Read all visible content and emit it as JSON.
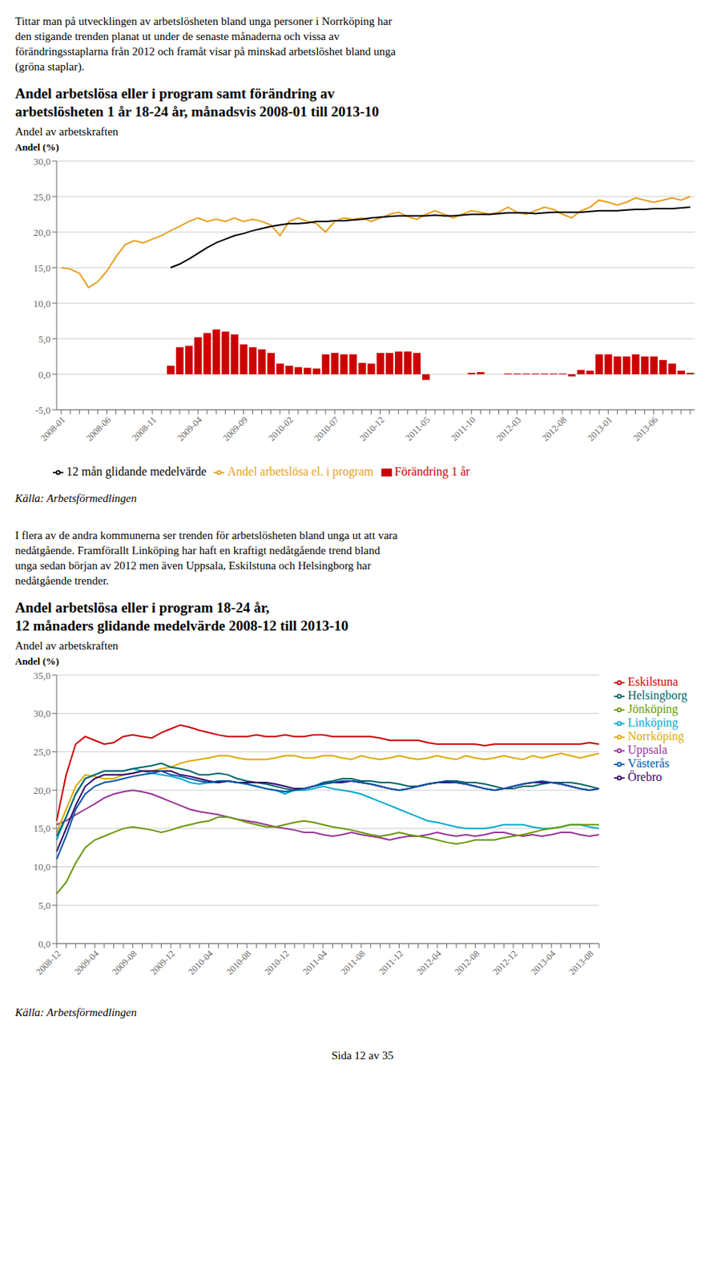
{
  "chart_data": [
    {
      "type": "bar",
      "annotations": [
        "Tittar man på utvecklingen av arbetslösheten bland unga personer i Norrköping har",
        "den stigande trenden planat ut under de senaste månaderna och vissa av",
        "förändringsstaplarna från 2012 och framåt visar på minskad arbetslöshet bland unga",
        "(gröna staplar)."
      ],
      "title": "Andel arbetslösa eller i program samt förändring av\narbetslösheten 1 år 18-24 år, månadsvis 2008-01 till 2013-10",
      "subtitle": "Andel av arbetskraften",
      "y_label": "Andel (%)",
      "categories": [
        "2008-01",
        null,
        null,
        null,
        null,
        "2008-06",
        null,
        null,
        null,
        null,
        "2008-11",
        null,
        null,
        null,
        null,
        "2009-04",
        null,
        null,
        null,
        null,
        "2009-09",
        null,
        null,
        null,
        null,
        "2010-02",
        null,
        null,
        null,
        null,
        "2010-07",
        null,
        null,
        null,
        null,
        "2010-12",
        null,
        null,
        null,
        null,
        "2011-05",
        null,
        null,
        null,
        null,
        "2011-10",
        null,
        null,
        null,
        null,
        "2012-03",
        null,
        null,
        null,
        null,
        "2012-08",
        null,
        null,
        null,
        null,
        "2013-01",
        null,
        null,
        null,
        null,
        "2013-06",
        null,
        null,
        null,
        null
      ],
      "series": [
        {
          "name": "Förändring 1 år",
          "type": "bar",
          "color": "#cc0000",
          "values": [
            0,
            0,
            0,
            0,
            0,
            0,
            0,
            0,
            0,
            0,
            0,
            0,
            1.2,
            3.8,
            4.0,
            5.2,
            5.8,
            6.3,
            6.0,
            5.6,
            4.2,
            3.8,
            3.5,
            3.0,
            1.5,
            1.2,
            1.0,
            0.9,
            0.8,
            2.8,
            3.0,
            2.8,
            2.8,
            1.6,
            1.5,
            3.0,
            3.0,
            3.2,
            3.2,
            3.0,
            -0.8,
            0,
            0,
            0,
            0,
            0.2,
            0.3,
            0,
            0,
            0.1,
            0.1,
            0.1,
            0.1,
            0.1,
            0.1,
            0.1,
            -0.3,
            0.6,
            0.5,
            2.8,
            2.8,
            2.5,
            2.5,
            2.8,
            2.5,
            2.5,
            2.0,
            1.5,
            0.5,
            0.2
          ]
        },
        {
          "name": "Andel arbetslösa el. i program",
          "type": "line",
          "color": "#e8a020",
          "values": [
            15.0,
            14.8,
            14.2,
            12.2,
            13.0,
            14.5,
            16.5,
            18.2,
            18.8,
            18.5,
            19.0,
            19.5,
            20.2,
            20.8,
            21.5,
            22.0,
            21.5,
            21.8,
            21.5,
            22.0,
            21.5,
            21.8,
            21.5,
            21.0,
            19.5,
            21.5,
            22.0,
            21.5,
            21.2,
            20.0,
            21.5,
            22.0,
            21.8,
            22.0,
            21.5,
            22.0,
            22.5,
            22.8,
            22.2,
            21.8,
            22.5,
            23.0,
            22.5,
            22.0,
            22.5,
            23.0,
            22.8,
            22.5,
            22.8,
            23.5,
            22.8,
            22.5,
            23.0,
            23.5,
            23.2,
            22.5,
            22.0,
            23.0,
            23.5,
            24.5,
            24.2,
            23.8,
            24.2,
            24.8,
            24.5,
            24.2,
            24.5,
            24.8,
            24.5,
            25.0
          ]
        },
        {
          "name": "12 mån glidande medelvärde",
          "type": "line",
          "color": "#000000",
          "values": [
            null,
            null,
            null,
            null,
            null,
            null,
            null,
            null,
            null,
            null,
            null,
            null,
            15.0,
            15.5,
            16.2,
            17.0,
            17.8,
            18.5,
            19.0,
            19.5,
            19.8,
            20.2,
            20.5,
            20.8,
            21.0,
            21.2,
            21.2,
            21.3,
            21.5,
            21.5,
            21.6,
            21.6,
            21.7,
            21.8,
            22.0,
            22.1,
            22.2,
            22.3,
            22.3,
            22.3,
            22.3,
            22.4,
            22.3,
            22.3,
            22.4,
            22.5,
            22.5,
            22.5,
            22.6,
            22.7,
            22.7,
            22.7,
            22.6,
            22.7,
            22.8,
            22.8,
            22.8,
            22.8,
            22.9,
            23.0,
            23.0,
            23.0,
            23.1,
            23.2,
            23.2,
            23.3,
            23.3,
            23.3,
            23.4,
            23.5
          ]
        }
      ],
      "ylim": [
        -5.0,
        30.0
      ],
      "yticks": [
        {
          "value": -5.0,
          "label": "-5,0"
        },
        {
          "value": 0.0,
          "label": "0,0"
        },
        {
          "value": 5.0,
          "label": "5,0"
        },
        {
          "value": 10.0,
          "label": "10,0"
        },
        {
          "value": 15.0,
          "label": "15,0"
        },
        {
          "value": 20.0,
          "label": "20,0"
        },
        {
          "value": 25.0,
          "label": "25,0"
        },
        {
          "value": 30.0,
          "label": "30,0"
        }
      ],
      "grid": true,
      "legend": "bottom",
      "source": "Källa: Arbetsförmedlingen"
    },
    {
      "type": "line",
      "annotations": [
        "I flera av de andra kommunerna ser trenden för arbetslösheten bland unga ut att vara",
        "nedåtgående. Framförallt Linköping har haft en kraftigt nedåtgående trend bland",
        "unga sedan början av 2012 men även Uppsala, Eskilstuna och Helsingborg har",
        "nedåtgående trender."
      ],
      "title": "Andel arbetslösa eller i program 18-24 år,\n12 månaders glidande medelvärde 2008-12 till 2013-10",
      "subtitle": "Andel av arbetskraften",
      "y_label": "Andel (%)",
      "categories": [
        "2008-12",
        null,
        null,
        null,
        "2009-04",
        null,
        null,
        null,
        "2009-08",
        null,
        null,
        null,
        "2009-12",
        null,
        null,
        null,
        "2010-04",
        null,
        null,
        null,
        "2010-08",
        null,
        null,
        null,
        "2010-12",
        null,
        null,
        null,
        "2011-04",
        null,
        null,
        null,
        "2011-08",
        null,
        null,
        null,
        "2011-12",
        null,
        null,
        null,
        "2012-04",
        null,
        null,
        null,
        "2012-08",
        null,
        null,
        null,
        "2012-12",
        null,
        null,
        null,
        "2013-04",
        null,
        null,
        null,
        "2013-08",
        null
      ],
      "series": [
        {
          "name": "Uppsala",
          "color": "#993399",
          "values": [
            15.5,
            16.0,
            16.8,
            17.5,
            18.2,
            19.0,
            19.5,
            19.8,
            20.0,
            19.8,
            19.5,
            19.0,
            18.5,
            18.0,
            17.5,
            17.2,
            17.0,
            16.8,
            16.5,
            16.2,
            16.0,
            15.8,
            15.5,
            15.2,
            15.0,
            14.8,
            14.5,
            14.5,
            14.2,
            14.0,
            14.2,
            14.5,
            14.2,
            14.0,
            13.8,
            13.5,
            13.8,
            14.0,
            14.0,
            14.2,
            14.5,
            14.2,
            14.0,
            14.2,
            14.0,
            14.2,
            14.5,
            14.5,
            14.2,
            14.0,
            14.2,
            14.0,
            14.2,
            14.5,
            14.5,
            14.2,
            14.0,
            14.2
          ]
        },
        {
          "name": "Eskilstuna",
          "color": "#cc0000",
          "values": [
            16.0,
            22.0,
            26.0,
            27.0,
            26.5,
            26.0,
            26.2,
            27.0,
            27.2,
            27.0,
            26.8,
            27.5,
            28.0,
            28.5,
            28.2,
            27.8,
            27.5,
            27.2,
            27.0,
            27.0,
            27.0,
            27.2,
            27.0,
            27.0,
            27.2,
            27.0,
            27.0,
            27.2,
            27.2,
            27.0,
            27.0,
            27.0,
            27.0,
            27.0,
            26.8,
            26.5,
            26.5,
            26.5,
            26.5,
            26.2,
            26.0,
            26.0,
            26.0,
            26.0,
            26.0,
            25.8,
            26.0,
            26.0,
            26.0,
            26.0,
            26.0,
            26.0,
            26.0,
            26.0,
            26.0,
            26.0,
            26.2,
            26.0
          ]
        },
        {
          "name": "Linköping",
          "color": "#00aacc",
          "values": [
            13.5,
            16.5,
            19.5,
            21.5,
            22.0,
            22.5,
            22.5,
            22.5,
            22.8,
            22.5,
            22.2,
            22.0,
            21.8,
            21.5,
            21.0,
            20.8,
            21.0,
            21.0,
            21.2,
            21.0,
            20.8,
            20.5,
            20.2,
            20.0,
            19.5,
            20.0,
            20.0,
            20.2,
            20.5,
            20.2,
            20.0,
            19.8,
            19.5,
            19.0,
            18.5,
            18.0,
            17.5,
            17.0,
            16.5,
            16.0,
            15.8,
            15.5,
            15.2,
            15.0,
            15.0,
            15.0,
            15.2,
            15.5,
            15.5,
            15.5,
            15.2,
            15.0,
            15.0,
            15.2,
            15.5,
            15.5,
            15.2,
            15.0
          ]
        },
        {
          "name": "Norrköping",
          "color": "#ddaa00",
          "values": [
            14.5,
            17.5,
            20.5,
            22.0,
            21.8,
            21.5,
            21.5,
            22.0,
            22.2,
            22.5,
            22.5,
            22.8,
            23.0,
            23.5,
            23.8,
            24.0,
            24.2,
            24.5,
            24.5,
            24.2,
            24.0,
            24.0,
            24.0,
            24.2,
            24.5,
            24.5,
            24.2,
            24.2,
            24.5,
            24.5,
            24.2,
            24.0,
            24.5,
            24.2,
            24.0,
            24.2,
            24.5,
            24.2,
            24.0,
            24.2,
            24.5,
            24.2,
            24.0,
            24.5,
            24.2,
            24.0,
            24.2,
            24.5,
            24.2,
            24.0,
            24.5,
            24.2,
            24.5,
            24.8,
            24.5,
            24.2,
            24.5,
            24.8
          ]
        },
        {
          "name": "Jönköping",
          "color": "#669900",
          "values": [
            6.5,
            8.0,
            10.5,
            12.5,
            13.5,
            14.0,
            14.5,
            15.0,
            15.2,
            15.0,
            14.8,
            14.5,
            14.8,
            15.2,
            15.5,
            15.8,
            16.0,
            16.5,
            16.5,
            16.2,
            15.8,
            15.5,
            15.2,
            15.2,
            15.5,
            15.8,
            16.0,
            15.8,
            15.5,
            15.2,
            15.0,
            14.8,
            14.5,
            14.2,
            14.0,
            14.2,
            14.5,
            14.2,
            14.0,
            13.8,
            13.5,
            13.2,
            13.0,
            13.2,
            13.5,
            13.5,
            13.5,
            13.8,
            14.0,
            14.2,
            14.5,
            14.8,
            15.0,
            15.2,
            15.5,
            15.5,
            15.5,
            15.5
          ]
        },
        {
          "name": "Helsingborg",
          "color": "#006666",
          "values": [
            14.0,
            16.5,
            19.5,
            21.5,
            22.0,
            22.5,
            22.5,
            22.5,
            22.8,
            23.0,
            23.2,
            23.5,
            23.0,
            22.8,
            22.5,
            22.0,
            22.0,
            22.2,
            22.0,
            21.5,
            21.2,
            21.0,
            20.8,
            20.5,
            20.2,
            20.0,
            20.2,
            20.5,
            21.0,
            21.2,
            21.5,
            21.5,
            21.2,
            21.2,
            21.0,
            21.0,
            20.8,
            20.5,
            20.5,
            20.8,
            21.0,
            21.2,
            21.2,
            21.0,
            21.0,
            20.8,
            20.5,
            20.2,
            20.2,
            20.5,
            20.5,
            20.8,
            21.0,
            21.0,
            21.0,
            20.8,
            20.5,
            20.2
          ]
        },
        {
          "name": "Örebro",
          "color": "#330066",
          "values": [
            12.0,
            15.0,
            18.0,
            20.5,
            21.5,
            22.0,
            22.0,
            22.0,
            22.2,
            22.5,
            22.5,
            22.5,
            22.5,
            22.0,
            21.8,
            21.5,
            21.2,
            21.0,
            21.2,
            21.0,
            21.0,
            21.0,
            21.0,
            20.8,
            20.5,
            20.2,
            20.2,
            20.5,
            20.8,
            21.0,
            21.0,
            21.2,
            21.0,
            20.8,
            20.5,
            20.2,
            20.0,
            20.2,
            20.5,
            20.8,
            21.0,
            21.0,
            21.0,
            20.8,
            20.5,
            20.2,
            20.0,
            20.2,
            20.5,
            20.8,
            21.0,
            21.0,
            21.0,
            20.8,
            20.5,
            20.2,
            20.0,
            20.2
          ]
        },
        {
          "name": "Västerås",
          "color": "#0055aa",
          "values": [
            11.0,
            14.0,
            17.5,
            19.5,
            20.5,
            21.0,
            21.2,
            21.5,
            21.8,
            22.0,
            22.2,
            22.5,
            22.0,
            21.8,
            21.5,
            21.2,
            21.0,
            21.2,
            21.2,
            21.0,
            20.8,
            20.5,
            20.2,
            20.0,
            19.8,
            20.0,
            20.2,
            20.5,
            20.8,
            21.0,
            21.2,
            21.2,
            21.0,
            20.8,
            20.5,
            20.2,
            20.0,
            20.2,
            20.5,
            20.8,
            21.0,
            21.2,
            21.0,
            20.8,
            20.5,
            20.2,
            20.0,
            20.2,
            20.5,
            20.8,
            21.0,
            21.2,
            21.0,
            20.8,
            20.5,
            20.2,
            20.0,
            20.2
          ]
        }
      ],
      "ylim": [
        0.0,
        35.0
      ],
      "yticks": [
        {
          "value": 0.0,
          "label": "0,0"
        },
        {
          "value": 5.0,
          "label": "5,0"
        },
        {
          "value": 10.0,
          "label": "10,0"
        },
        {
          "value": 15.0,
          "label": "15,0"
        },
        {
          "value": 20.0,
          "label": "20,0"
        },
        {
          "value": 25.0,
          "label": "25,0"
        },
        {
          "value": 30.0,
          "label": "30,0"
        },
        {
          "value": 35.0,
          "label": "35,0"
        }
      ],
      "grid": true,
      "legend": "right",
      "source": "Källa: Arbetsförmedlingen",
      "footer": "Sida 12 av 35"
    }
  ]
}
